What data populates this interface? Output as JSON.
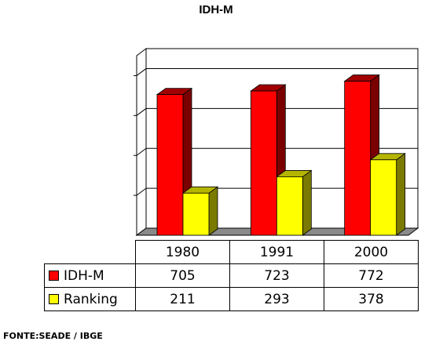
{
  "chart_data": {
    "type": "bar",
    "title": "IDH-M",
    "categories": [
      "1980",
      "1991",
      "2000"
    ],
    "series": [
      {
        "name": "IDH-M",
        "values": [
          705,
          723,
          772
        ],
        "color": "#ff0000",
        "side_color": "#7a0000",
        "top_color": "#a00000"
      },
      {
        "name": "Ranking",
        "values": [
          211,
          293,
          378
        ],
        "color": "#ffff00",
        "side_color": "#7a7a00",
        "top_color": "#b5b500"
      }
    ],
    "ylim": [
      0,
      900
    ],
    "y_tick_values": [
      0,
      200,
      400,
      600,
      800
    ],
    "y_tick_labels_visible": false,
    "grid": true,
    "three_d": true,
    "legend_placement": "in data table"
  },
  "source_note": "FONTE:SEADE / IBGE"
}
